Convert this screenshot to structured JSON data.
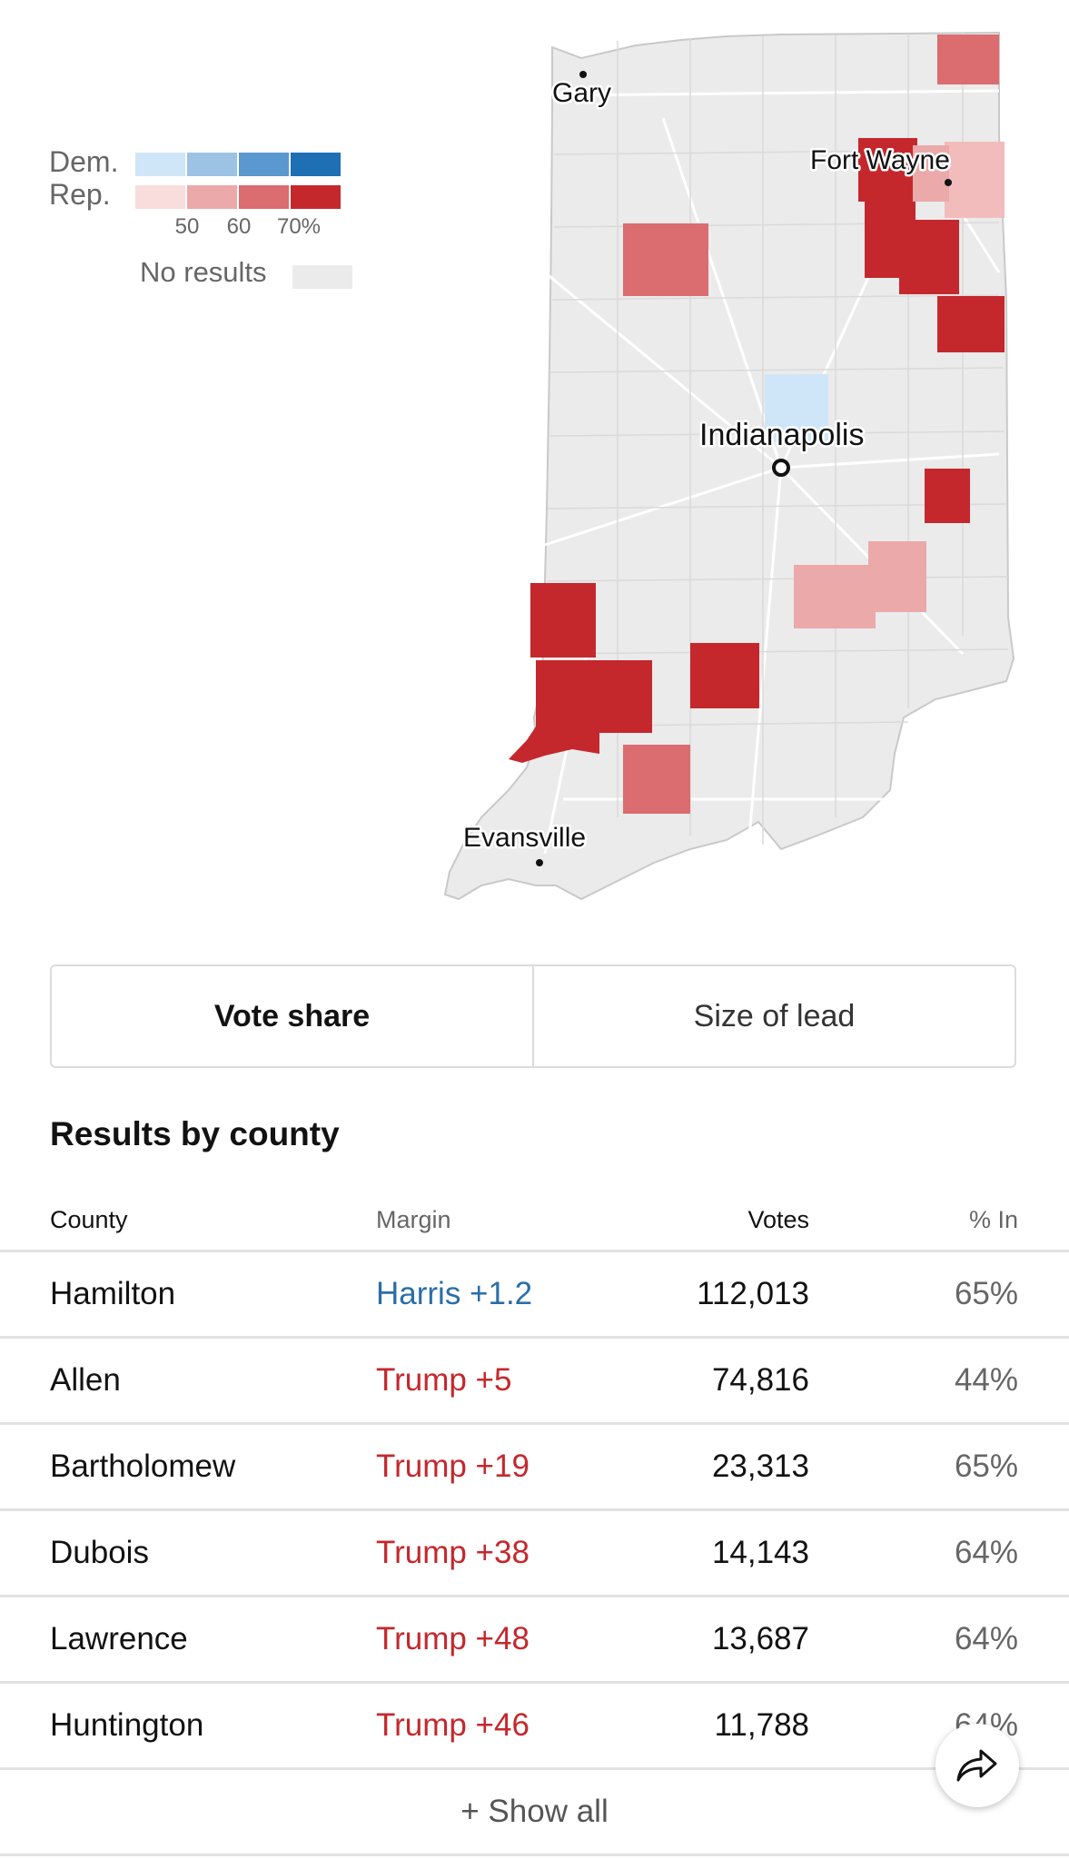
{
  "legend": {
    "dem_label": "Dem.",
    "rep_label": "Rep.",
    "ticks": [
      "50",
      "60",
      "70%"
    ],
    "no_results_label": "No results",
    "dem_colors": [
      "#cfe6f8",
      "#9dc3e4",
      "#5b98cf",
      "#1f6fb4"
    ],
    "rep_colors": [
      "#f9dcdc",
      "#eba9aa",
      "#db6c6f",
      "#c4282d"
    ],
    "no_results_color": "#ebebeb"
  },
  "map": {
    "cities": [
      "Gary",
      "Fort Wayne",
      "Indianapolis",
      "Evansville"
    ]
  },
  "toggle": {
    "options": [
      "Vote share",
      "Size of lead"
    ],
    "active": "Vote share"
  },
  "results": {
    "title": "Results by county",
    "columns": {
      "county": "County",
      "margin": "Margin",
      "votes": "Votes",
      "pct_in": "% In"
    },
    "rows": [
      {
        "county": "Hamilton",
        "margin": "Harris +1.2",
        "party": "dem",
        "votes": "112,013",
        "pct_in": "65%"
      },
      {
        "county": "Allen",
        "margin": "Trump +5",
        "party": "rep",
        "votes": "74,816",
        "pct_in": "44%"
      },
      {
        "county": "Bartholomew",
        "margin": "Trump +19",
        "party": "rep",
        "votes": "23,313",
        "pct_in": "65%"
      },
      {
        "county": "Dubois",
        "margin": "Trump +38",
        "party": "rep",
        "votes": "14,143",
        "pct_in": "64%"
      },
      {
        "county": "Lawrence",
        "margin": "Trump +48",
        "party": "rep",
        "votes": "13,687",
        "pct_in": "64%"
      },
      {
        "county": "Huntington",
        "margin": "Trump +46",
        "party": "rep",
        "votes": "11,788",
        "pct_in": "64%"
      }
    ],
    "show_all_label": "+ Show all"
  },
  "share": {
    "icon": "share-arrow-icon"
  }
}
